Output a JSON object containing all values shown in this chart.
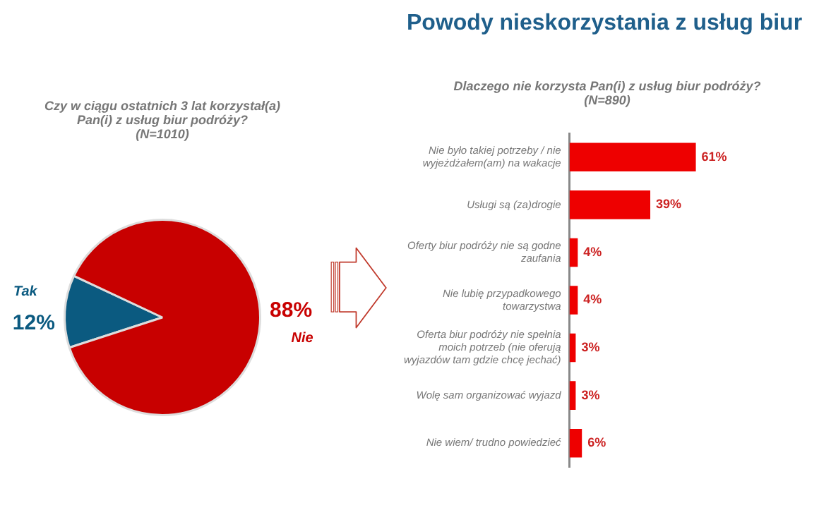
{
  "chart_data": [
    {
      "type": "pie",
      "title": "Czy w ciągu ostatnich 3 lat korzystał(a) Pan(i) z usług biur podróży?",
      "subtitle": "(N=1010)",
      "categories": [
        "Tak",
        "Nie"
      ],
      "values": [
        12,
        88
      ],
      "colors": [
        "#0b5a80",
        "#c80000"
      ],
      "value_labels": [
        "12%",
        "88%"
      ]
    },
    {
      "type": "bar",
      "orientation": "horizontal",
      "title": "Powody nieskorzystania z usług biur",
      "subtitle": "Dlaczego nie korzysta Pan(i) z usług biur podróży?",
      "annotations": [
        "(N=890)"
      ],
      "categories": [
        "Nie było takiej potrzeby / nie wyjeżdżałem(am) na wakacje",
        "Usługi są (za)drogie",
        "Oferty biur podróży nie są godne zaufania",
        "Nie lubię przypadkowego towarzystwa",
        "Oferta biur podróży nie spełnia moich potrzeb (nie oferują wyjazdów tam gdzie chcę jechać)",
        "Wolę sam organizować wyjazd",
        "Nie wiem/ trudno powiedzieć"
      ],
      "values": [
        61,
        39,
        4,
        4,
        3,
        3,
        6
      ],
      "color": "#ee0000",
      "value_labels": [
        "61%",
        "39%",
        "4%",
        "4%",
        "3%",
        "3%",
        "6%"
      ]
    }
  ]
}
